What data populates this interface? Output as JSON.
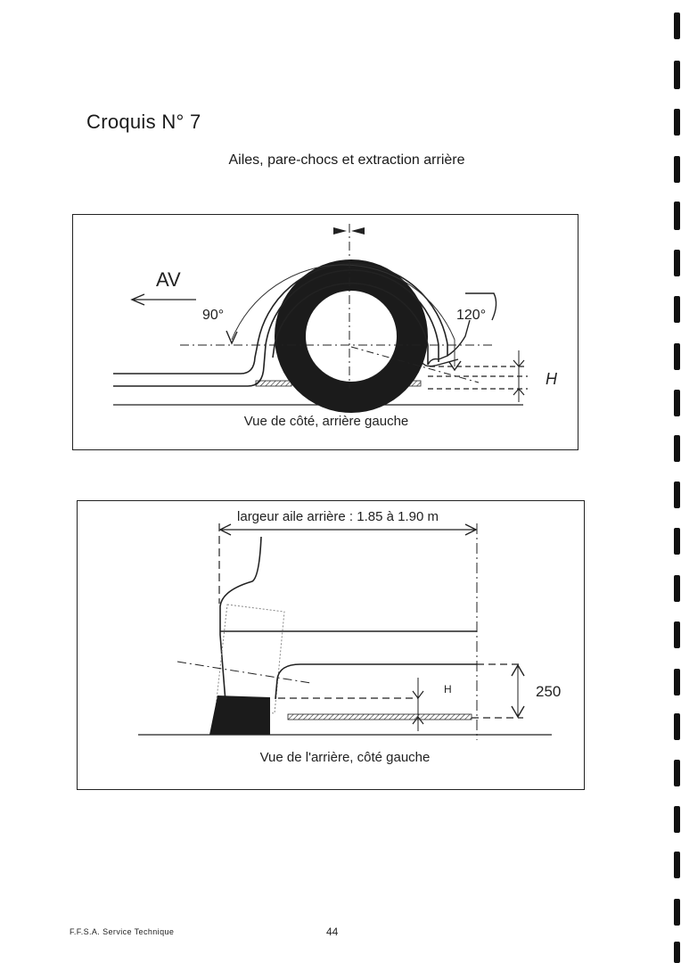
{
  "document": {
    "title": "Croquis N° 7",
    "subtitle": "Ailes, pare-chocs et extraction arrière"
  },
  "figure_side": {
    "direction_label": "AV",
    "angle_front": "90°",
    "angle_rear": "120°",
    "height_label": "H",
    "caption": "Vue de côté, arrière gauche"
  },
  "figure_rear": {
    "width_label": "largeur aile arrière : 1.85 à 1.90 m",
    "height_label": "H",
    "dimension_value": "250",
    "caption": "Vue de l'arrière, côté gauche"
  },
  "footer": {
    "left_text": "F.F.S.A. Service Technique",
    "page_number": "44"
  }
}
